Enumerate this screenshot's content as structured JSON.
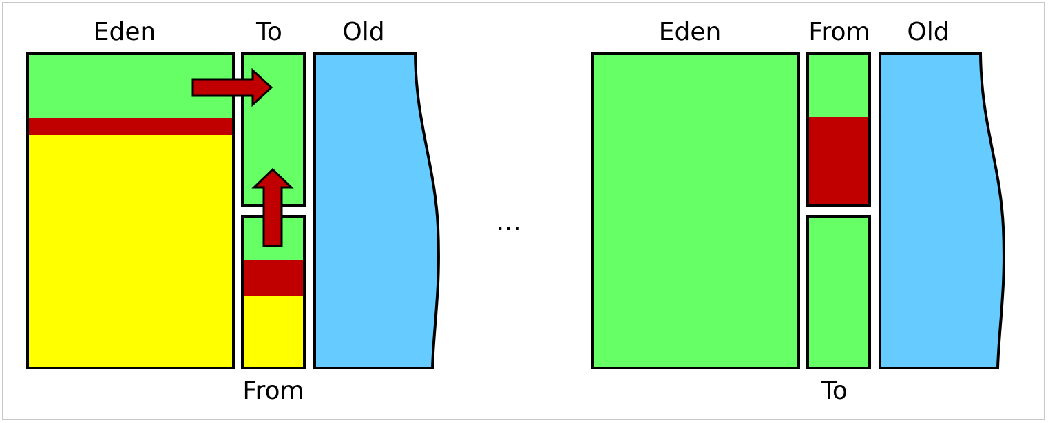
{
  "colors": {
    "free": "#66ff66",
    "live": "#c00000",
    "dead": "#ffff00",
    "old": "#66ccff",
    "outline": "#000000",
    "frame": "#c8c8c8",
    "background": "#ffffff"
  },
  "left_state": {
    "eden_label": "Eden",
    "to_label": "To",
    "old_label": "Old",
    "from_label": "From"
  },
  "separator": "...",
  "right_state": {
    "eden_label": "Eden",
    "from_label": "From",
    "old_label": "Old",
    "to_label": "To"
  },
  "icons": {
    "copy_arrow_right": "arrow-right-icon",
    "copy_arrow_up": "arrow-up-icon"
  }
}
